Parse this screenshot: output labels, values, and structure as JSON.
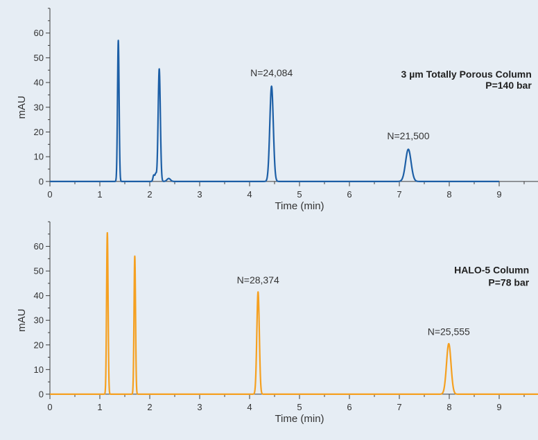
{
  "colors": {
    "background": "#e6edf4",
    "axis": "#3a3a3a",
    "text": "#333333",
    "annotation_bold": "#1f1f1f"
  },
  "chart_data": [
    {
      "type": "line",
      "xlabel": "Time (min)",
      "ylabel": "mAU",
      "xlim": [
        0,
        10
      ],
      "ylim": [
        -2,
        70
      ],
      "x_ticks": [
        "0",
        "1",
        "2",
        "3",
        "4",
        "5",
        "6",
        "7",
        "8",
        "9"
      ],
      "y_ticks": [
        "0",
        "10",
        "20",
        "30",
        "40",
        "50",
        "60"
      ],
      "grid": false,
      "series": [
        {
          "color": "#1d5fa6",
          "baseline": 0,
          "x_range": [
            0,
            9.0
          ],
          "peaks": [
            {
              "x": 1.37,
              "y": 57,
              "width": 0.016
            },
            {
              "x": 2.08,
              "y": 2.5,
              "width": 0.016
            },
            {
              "x": 2.12,
              "y": 3,
              "width": 0.016
            },
            {
              "x": 2.19,
              "y": 45.5,
              "width": 0.022
            },
            {
              "x": 2.38,
              "y": 1.2,
              "width": 0.035
            },
            {
              "x": 4.44,
              "y": 38.5,
              "width": 0.035
            },
            {
              "x": 7.18,
              "y": 13,
              "width": 0.055
            }
          ]
        }
      ],
      "annotations": [
        {
          "text": "N=24,084",
          "x": 4.44,
          "y": 42.5,
          "bold": false,
          "anchor": "middle"
        },
        {
          "text": "N=21,500",
          "x": 7.18,
          "y": 17,
          "bold": false,
          "anchor": "middle"
        },
        {
          "text": "3 µm Totally Porous Column",
          "x": 9.65,
          "y": 42,
          "bold": true,
          "anchor": "end"
        },
        {
          "text": "P=140 bar",
          "x": 9.65,
          "y": 37.5,
          "bold": true,
          "anchor": "end"
        }
      ]
    },
    {
      "type": "line",
      "xlabel": "Time (min)",
      "ylabel": "mAU",
      "xlim": [
        0,
        10
      ],
      "ylim": [
        -2,
        70
      ],
      "x_ticks": [
        "0",
        "1",
        "2",
        "3",
        "4",
        "5",
        "6",
        "7",
        "8",
        "9"
      ],
      "y_ticks": [
        "0",
        "10",
        "20",
        "30",
        "40",
        "50",
        "60"
      ],
      "grid": false,
      "series": [
        {
          "color": "#f5a020",
          "baseline": 0,
          "x_range": [
            0,
            10
          ],
          "peaks": [
            {
              "x": 1.15,
              "y": 65.5,
              "width": 0.015
            },
            {
              "x": 1.7,
              "y": 56,
              "width": 0.015
            },
            {
              "x": 4.17,
              "y": 41.5,
              "width": 0.025
            },
            {
              "x": 7.99,
              "y": 20.5,
              "width": 0.045
            }
          ]
        }
      ],
      "annotations": [
        {
          "text": "N=28,374",
          "x": 4.17,
          "y": 45,
          "bold": false,
          "anchor": "middle"
        },
        {
          "text": "N=25,555",
          "x": 7.99,
          "y": 24,
          "bold": false,
          "anchor": "middle"
        },
        {
          "text": "HALO-5 Column",
          "x": 9.6,
          "y": 49,
          "bold": true,
          "anchor": "end"
        },
        {
          "text": "P=78 bar",
          "x": 9.6,
          "y": 44,
          "bold": true,
          "anchor": "end"
        }
      ]
    }
  ]
}
